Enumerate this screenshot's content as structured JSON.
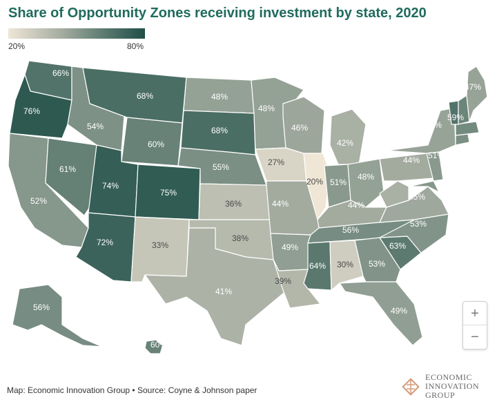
{
  "title": "Share of Opportunity Zones receiving investment by state, 2020",
  "legend": {
    "min_label": "20%",
    "max_label": "80%",
    "min_value": 20,
    "max_value": 80
  },
  "colors": {
    "title": "#1f6b5d",
    "scale_low": "#efe6d6",
    "scale_mid": "#a3ab9f",
    "scale_high": "#1f4f47"
  },
  "states": [
    {
      "name": "WA",
      "label": "66%",
      "value": 66
    },
    {
      "name": "OR",
      "label": "76%",
      "value": 76
    },
    {
      "name": "CA",
      "label": "52%",
      "value": 52
    },
    {
      "name": "NV",
      "label": "61%",
      "value": 61
    },
    {
      "name": "ID",
      "label": "54%",
      "value": 54
    },
    {
      "name": "MT",
      "label": "68%",
      "value": 68
    },
    {
      "name": "WY",
      "label": "60%",
      "value": 60
    },
    {
      "name": "UT",
      "label": "74%",
      "value": 74
    },
    {
      "name": "AZ",
      "label": "72%",
      "value": 72
    },
    {
      "name": "CO",
      "label": "75%",
      "value": 75
    },
    {
      "name": "NM",
      "label": "33%",
      "value": 33
    },
    {
      "name": "ND",
      "label": "48%",
      "value": 48
    },
    {
      "name": "SD",
      "label": "68%",
      "value": 68
    },
    {
      "name": "NE",
      "label": "55%",
      "value": 55
    },
    {
      "name": "KS",
      "label": "36%",
      "value": 36
    },
    {
      "name": "OK",
      "label": "38%",
      "value": 38
    },
    {
      "name": "TX",
      "label": "41%",
      "value": 41
    },
    {
      "name": "MN",
      "label": "48%",
      "value": 48
    },
    {
      "name": "IA",
      "label": "27%",
      "value": 27
    },
    {
      "name": "MO",
      "label": "44%",
      "value": 44
    },
    {
      "name": "AR",
      "label": "49%",
      "value": 49
    },
    {
      "name": "LA",
      "label": "39%",
      "value": 39
    },
    {
      "name": "WI",
      "label": "46%",
      "value": 46
    },
    {
      "name": "IL",
      "label": "20%",
      "value": 20
    },
    {
      "name": "MI",
      "label": "42%",
      "value": 42
    },
    {
      "name": "IN",
      "label": "51%",
      "value": 51
    },
    {
      "name": "OH",
      "label": "48%",
      "value": 48
    },
    {
      "name": "KY",
      "label": "44%",
      "value": 44
    },
    {
      "name": "TN",
      "label": "56%",
      "value": 56
    },
    {
      "name": "MS",
      "label": "64%",
      "value": 64
    },
    {
      "name": "AL",
      "label": "30%",
      "value": 30
    },
    {
      "name": "GA",
      "label": "53%",
      "value": 53
    },
    {
      "name": "FL",
      "label": "49%",
      "value": 49
    },
    {
      "name": "SC",
      "label": "63%",
      "value": 63
    },
    {
      "name": "NC",
      "label": "53%",
      "value": 53
    },
    {
      "name": "VA",
      "label": "45%",
      "value": 45
    },
    {
      "name": "WV",
      "label": "",
      "value": 42
    },
    {
      "name": "PA",
      "label": "44%",
      "value": 44
    },
    {
      "name": "NY",
      "label": "47%",
      "value": 47
    },
    {
      "name": "NJ",
      "label": "51%",
      "value": 51
    },
    {
      "name": "VT",
      "label": "",
      "value": 66
    },
    {
      "name": "NH",
      "label": "59%",
      "value": 59
    },
    {
      "name": "ME",
      "label": "47%",
      "value": 47
    },
    {
      "name": "MA",
      "label": "",
      "value": 57
    },
    {
      "name": "CT",
      "label": "",
      "value": 55
    },
    {
      "name": "MD",
      "label": "",
      "value": 52
    },
    {
      "name": "AK",
      "label": "56%",
      "value": 56
    },
    {
      "name": "HI",
      "label": "60%",
      "value": 60
    }
  ],
  "zoom": {
    "in_label": "+",
    "out_label": "−"
  },
  "source": "Map: Economic Innovation Group • Source: Coyne & Johnson paper",
  "logo": {
    "line1": "ECONOMIC",
    "line2": "INNOVATION",
    "line3": "GROUP",
    "icon": "eig-diamond-logo-icon"
  }
}
